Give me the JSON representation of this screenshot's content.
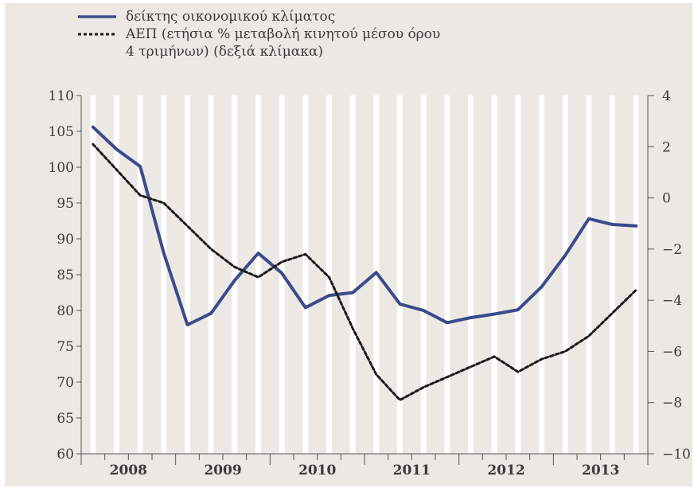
{
  "chart_data": {
    "type": "line",
    "title": "",
    "legend": {
      "position": "top-left",
      "entries": [
        {
          "label_lines": [
            "δείκτης οικονομικού κλίματος"
          ],
          "style": "solid",
          "color": "#3b4a8c"
        },
        {
          "label_lines": [
            "ΑΕΠ (ετήσια % μεταβολή κινητού μέσου όρου",
            "4 τριμήνων) (δεξιά κλίμακα)"
          ],
          "style": "dashed",
          "color": "#1a1a1a"
        }
      ]
    },
    "x_categories": [
      "2008",
      "2009",
      "2010",
      "2011",
      "2012",
      "2013"
    ],
    "x_subperiods": 4,
    "x_range": [
      0,
      24
    ],
    "y_left": {
      "range": [
        60,
        110
      ],
      "ticks": [
        60,
        65,
        70,
        75,
        80,
        85,
        90,
        95,
        100,
        105,
        110
      ]
    },
    "y_right": {
      "range": [
        -10,
        4
      ],
      "ticks": [
        -10,
        -8,
        -6,
        -4,
        -2,
        0,
        2,
        4
      ]
    },
    "grid": {
      "vertical_bands": true,
      "horizontal": false
    },
    "series": [
      {
        "name": "δείκτης οικονομικού κλίματος",
        "axis": "left",
        "style": "solid",
        "x": [
          0.5,
          1.5,
          2.5,
          3.5,
          4.5,
          5.5,
          6.5,
          7.5,
          8.5,
          9.5,
          10.5,
          11.5,
          12.5,
          13.5,
          14.5,
          15.5,
          16.5,
          17.5,
          18.5,
          19.5,
          20.5,
          21.5,
          22.5,
          23.5
        ],
        "values": [
          105.6,
          102.5,
          100.1,
          88.0,
          78.0,
          79.6,
          84.2,
          88.0,
          85.2,
          80.4,
          82.1,
          82.5,
          85.3,
          80.9,
          80.0,
          78.3,
          79.0,
          79.5,
          80.1,
          83.3,
          87.7,
          92.8,
          92.0,
          91.8
        ]
      },
      {
        "name": "ΑΕΠ (ετήσια % μεταβολή κινητού μέσου όρου 4 τριμήνων) (δεξιά κλίμακα)",
        "axis": "right",
        "style": "dashed",
        "x": [
          0.5,
          1.5,
          2.5,
          3.5,
          4.5,
          5.5,
          6.5,
          7.5,
          8.5,
          9.5,
          10.5,
          11.5,
          12.5,
          13.5,
          14.5,
          15.5,
          16.5,
          17.5,
          18.5,
          19.5,
          20.5,
          21.5,
          22.5,
          23.5
        ],
        "values": [
          2.1,
          1.1,
          0.1,
          -0.2,
          -1.1,
          -2.0,
          -2.7,
          -3.1,
          -2.5,
          -2.2,
          -3.1,
          -5.1,
          -6.9,
          -7.9,
          -7.4,
          -7.0,
          -6.6,
          -6.2,
          -6.8,
          -6.3,
          -6.0,
          -5.4,
          -4.5,
          -3.6
        ]
      }
    ]
  }
}
